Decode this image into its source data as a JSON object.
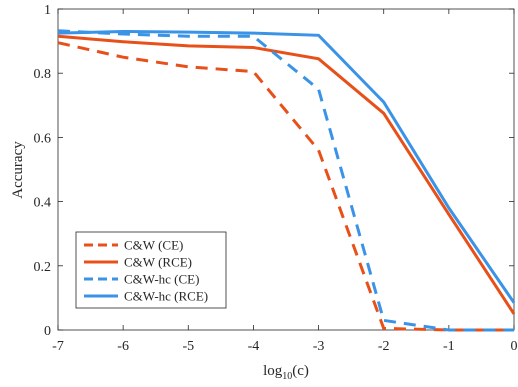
{
  "chart_data": {
    "type": "line",
    "xlabel_main": "log",
    "xlabel_sub": "10",
    "xlabel_tail": "(c)",
    "ylabel": "Accuracy",
    "xlim": [
      -7,
      0
    ],
    "ylim": [
      0,
      1
    ],
    "x_ticks": [
      -7,
      -6,
      -5,
      -4,
      -3,
      -2,
      -1,
      0
    ],
    "y_ticks": [
      0,
      0.2,
      0.4,
      0.6,
      0.8,
      1
    ],
    "x_tick_labels": [
      "-7",
      "-6",
      "-5",
      "-4",
      "-3",
      "-2",
      "-1",
      "0"
    ],
    "y_tick_labels": [
      "0",
      "0.2",
      "0.4",
      "0.6",
      "0.8",
      "1"
    ],
    "grid": false,
    "legend_position": "bottom-left",
    "x": [
      -7,
      -6,
      -5,
      -4,
      -3,
      -2,
      -1,
      0
    ],
    "series": [
      {
        "name": "C&W (CE)",
        "color": "#e8501a",
        "dash": "dashed",
        "values": [
          0.895,
          0.85,
          0.82,
          0.805,
          0.56,
          0.005,
          0.0,
          0.0
        ]
      },
      {
        "name": "C&W (RCE)",
        "color": "#e8501a",
        "dash": "solid",
        "values": [
          0.915,
          0.898,
          0.885,
          0.88,
          0.845,
          0.675,
          0.36,
          0.05
        ]
      },
      {
        "name": "C&W-hc (CE)",
        "color": "#3a93e6",
        "dash": "dashed",
        "values": [
          0.932,
          0.922,
          0.915,
          0.915,
          0.75,
          0.03,
          0.0,
          0.0
        ]
      },
      {
        "name": "C&W-hc (RCE)",
        "color": "#3a93e6",
        "dash": "solid",
        "values": [
          0.925,
          0.93,
          0.928,
          0.925,
          0.918,
          0.71,
          0.38,
          0.085
        ]
      }
    ]
  }
}
